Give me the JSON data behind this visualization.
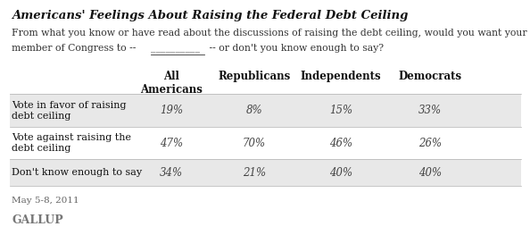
{
  "title": "Americans' Feelings About Raising the Federal Debt Ceiling",
  "subtitle_line1": "From what you know or have read about the discussions of raising the debt ceiling, would you want your",
  "subtitle_line2": "member of Congress to --  ___________  -- or don't you know enough to say?",
  "col_headers": [
    "All\nAmericans",
    "Republicans",
    "Independents",
    "Democrats"
  ],
  "row_labels": [
    "Vote in favor of raising\ndebt ceiling",
    "Vote against raising the\ndebt ceiling",
    "Don't know enough to say"
  ],
  "data": [
    [
      "19%",
      "8%",
      "15%",
      "33%"
    ],
    [
      "47%",
      "70%",
      "46%",
      "26%"
    ],
    [
      "34%",
      "21%",
      "40%",
      "40%"
    ]
  ],
  "date_label": "May 5-8, 2011",
  "source_label": "GALLUP",
  "row_bg_colors": [
    "#e8e8e8",
    "#ffffff",
    "#e8e8e8"
  ],
  "background_color": "#ffffff",
  "title_fontsize": 9.5,
  "subtitle_fontsize": 7.8,
  "header_fontsize": 8.5,
  "data_fontsize": 8.5,
  "row_label_fontsize": 8.0
}
